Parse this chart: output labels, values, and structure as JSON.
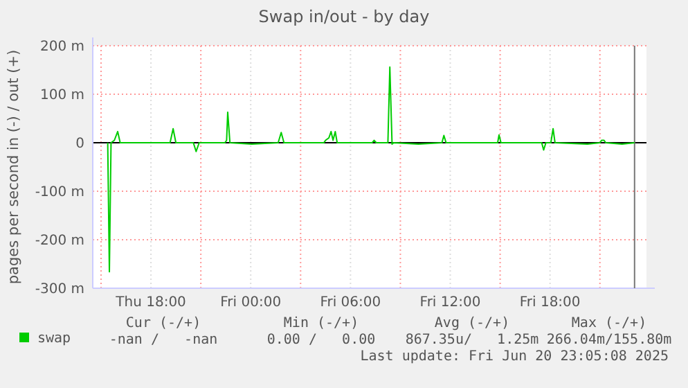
{
  "chart_data": {
    "type": "line",
    "title": "Swap in/out - by day",
    "ylabel": "pages per second in (-) / out (+)",
    "xlim": [
      "2025-06-19T14:30",
      "2025-06-20T23:48"
    ],
    "xticks": [
      {
        "value": "2025-06-19T15:00",
        "label": null
      },
      {
        "value": "2025-06-19T18:00",
        "label": "Thu 18:00"
      },
      {
        "value": "2025-06-19T21:00",
        "label": null
      },
      {
        "value": "2025-06-20T00:00",
        "label": "Fri 00:00"
      },
      {
        "value": "2025-06-20T03:00",
        "label": null
      },
      {
        "value": "2025-06-20T06:00",
        "label": "Fri 06:00"
      },
      {
        "value": "2025-06-20T09:00",
        "label": null
      },
      {
        "value": "2025-06-20T12:00",
        "label": "Fri 12:00"
      },
      {
        "value": "2025-06-20T15:00",
        "label": null
      },
      {
        "value": "2025-06-20T18:00",
        "label": "Fri 18:00"
      },
      {
        "value": "2025-06-20T21:00",
        "label": null
      }
    ],
    "ylim": [
      -300,
      200
    ],
    "yticks": [
      {
        "value": -300,
        "label": "-300 m"
      },
      {
        "value": -200,
        "label": "-200 m"
      },
      {
        "value": -100,
        "label": "-100 m"
      },
      0,
      {
        "value": 100,
        "label": "100 m"
      },
      {
        "value": 200,
        "label": "200 m"
      }
    ],
    "grid": true,
    "legend": "bottom",
    "series": [
      {
        "name": "swap",
        "color": "#00cc00",
        "x": [
          "2025-06-19T15:24",
          "2025-06-19T15:30",
          "2025-06-19T15:36",
          "2025-06-19T15:48",
          "2025-06-19T16:00",
          "2025-06-19T16:09",
          "2025-06-19T19:09",
          "2025-06-19T19:20",
          "2025-06-19T19:30",
          "2025-06-19T20:33",
          "2025-06-19T20:43",
          "2025-06-19T20:54",
          "2025-06-19T22:27",
          "2025-06-19T22:33",
          "2025-06-19T22:37",
          "2025-06-19T22:45",
          "2025-06-20T00:04",
          "2025-06-20T01:39",
          "2025-06-20T01:50",
          "2025-06-20T02:00",
          "2025-06-20T04:24",
          "2025-06-20T04:30",
          "2025-06-20T04:42",
          "2025-06-20T04:50",
          "2025-06-20T04:57",
          "2025-06-20T05:05",
          "2025-06-20T05:12",
          "2025-06-20T07:18",
          "2025-06-20T07:25",
          "2025-06-20T07:33",
          "2025-06-20T08:15",
          "2025-06-20T08:22",
          "2025-06-20T08:30",
          "2025-06-20T08:36",
          "2025-06-20T10:05",
          "2025-06-20T11:30",
          "2025-06-20T11:37",
          "2025-06-20T11:45",
          "2025-06-20T14:51",
          "2025-06-20T14:56",
          "2025-06-20T15:03",
          "2025-06-20T17:30",
          "2025-06-20T17:37",
          "2025-06-20T17:45",
          "2025-06-20T18:03",
          "2025-06-20T18:11",
          "2025-06-20T18:18",
          "2025-06-20T20:15",
          "2025-06-20T21:00",
          "2025-06-20T21:06",
          "2025-06-20T21:15",
          "2025-06-20T21:21",
          "2025-06-20T22:20",
          "2025-06-20T23:05"
        ],
        "values": [
          0,
          -266,
          0,
          5,
          23,
          0,
          0,
          29,
          0,
          0,
          -18,
          0,
          0,
          5,
          63,
          0,
          -3,
          0,
          21,
          0,
          0,
          5,
          10,
          23,
          5,
          23,
          0,
          0,
          5,
          0,
          0,
          156,
          -3,
          0,
          -3,
          0,
          15,
          0,
          0,
          16,
          0,
          0,
          -15,
          0,
          0,
          29,
          0,
          -3,
          0,
          5,
          5,
          0,
          -3,
          0
        ]
      }
    ],
    "ref_lines": [
      {
        "axis": "x",
        "value": "2025-06-20T23:05",
        "label": null,
        "color": "#777777"
      }
    ],
    "annotations": [
      "Cur (-/+)",
      "Min (-/+)",
      "Avg (-/+)",
      "Max (-/+)",
      "-nan /   -nan",
      "0.00 /   0.00",
      "867.35u/   1.25m",
      "266.04m/155.80m",
      "Last update: Fri Jun 20 23:05:08 2025"
    ]
  }
}
